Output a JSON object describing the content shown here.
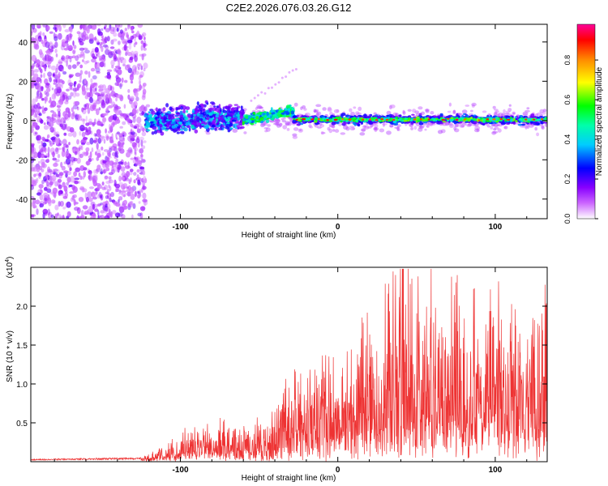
{
  "title": "C2E2.2026.076.03.26.G12",
  "chart_data": [
    {
      "type": "heatmap",
      "xlabel": "Height of straight line (km)",
      "ylabel": "Frequency (Hz)",
      "xlim": [
        -195,
        133
      ],
      "ylim": [
        -50,
        49
      ],
      "xticks": [
        -100,
        0,
        100
      ],
      "xtick_labels": [
        "-100",
        "0",
        "100"
      ],
      "yticks": [
        -40,
        -20,
        0,
        20,
        40
      ],
      "ytick_labels": [
        "-40",
        "-20",
        "0",
        "20",
        "40"
      ],
      "colorbar": {
        "label": "Normalized spectral amplitude",
        "range": [
          0,
          0.98
        ],
        "ticks": [
          0.0,
          0.2,
          0.4,
          0.6,
          0.8
        ],
        "tick_labels": [
          "0.0",
          "0.2",
          "0.4",
          "0.6",
          "0.8"
        ],
        "colormap": [
          "#ffffff",
          "#9900ff",
          "#0000ff",
          "#00ffff",
          "#00ff00",
          "#ffff00",
          "#ff8800",
          "#ff0000",
          "#ff00aa"
        ]
      },
      "features": [
        {
          "region": "noise",
          "x_range": [
            -195,
            -122
          ],
          "freq_range": [
            -50,
            49
          ],
          "amplitude": [
            0.05,
            0.2
          ]
        },
        {
          "region": "onset",
          "x_range": [
            -122,
            -60
          ],
          "center_freq": 0,
          "band_width": 18,
          "amplitude": [
            0.2,
            0.45
          ]
        },
        {
          "region": "drift",
          "x_range": [
            -60,
            -28
          ],
          "center_freq_start": 0,
          "center_freq_end": 5,
          "amplitude": [
            0.3,
            0.6
          ]
        },
        {
          "region": "tone",
          "x_range": [
            -28,
            133
          ],
          "center_freq": 0.5,
          "band_width": 6,
          "amplitude": [
            0.4,
            0.95
          ]
        }
      ]
    },
    {
      "type": "line",
      "xlabel": "Height of straight line (km)",
      "ylabel": "SNR (10 * v/v)",
      "scale_label": "(x10",
      "scale_exp": "4",
      "xlim": [
        -195,
        133
      ],
      "ylim": [
        0,
        2.5
      ],
      "xticks": [
        -100,
        0,
        100
      ],
      "xtick_labels": [
        "-100",
        "0",
        "100"
      ],
      "yticks": [
        0.5,
        1.0,
        1.5,
        2.0
      ],
      "ytick_labels": [
        "0.5",
        "1.0",
        "1.5",
        "2.0"
      ],
      "line_color": "#ee3333",
      "envelope": [
        {
          "x": -195,
          "y": 0.03
        },
        {
          "x": -125,
          "y": 0.05
        },
        {
          "x": -115,
          "y": 0.12
        },
        {
          "x": -100,
          "y": 0.25
        },
        {
          "x": -80,
          "y": 0.35
        },
        {
          "x": -60,
          "y": 0.32
        },
        {
          "x": -40,
          "y": 0.45
        },
        {
          "x": -30,
          "y": 0.75
        },
        {
          "x": -20,
          "y": 0.85
        },
        {
          "x": 0,
          "y": 0.9
        },
        {
          "x": 20,
          "y": 1.2
        },
        {
          "x": 40,
          "y": 1.6
        },
        {
          "x": 60,
          "y": 1.6
        },
        {
          "x": 80,
          "y": 1.45
        },
        {
          "x": 100,
          "y": 1.45
        },
        {
          "x": 120,
          "y": 1.4
        },
        {
          "x": 133,
          "y": 1.4
        }
      ]
    }
  ]
}
